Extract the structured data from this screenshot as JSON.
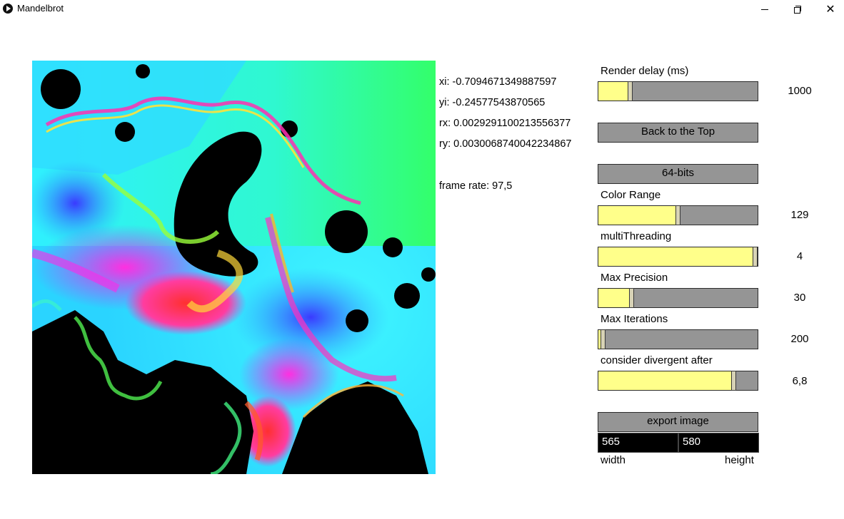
{
  "window": {
    "title": "Mandelbrot",
    "icon": "play-circle-icon",
    "controls": {
      "minimize": "minimize-icon",
      "restore": "restore-icon",
      "close": "close-icon"
    }
  },
  "info": {
    "xi": "xi: -0.7094671349887597",
    "yi": "yi: -0.24577543870565",
    "rx": "rx: 0.0029291100213556377",
    "ry": "ry: 0.0030068740042234867",
    "frame_rate": "frame rate: 97,5"
  },
  "controls": {
    "render_delay": {
      "label": "Render delay (ms)",
      "value": "1000",
      "fraction": 0.2
    },
    "back_to_top": {
      "label": "Back to the Top"
    },
    "bits": {
      "label": "64-bits"
    },
    "color_range": {
      "label": "Color Range",
      "value": "129",
      "fraction": 0.5
    },
    "multithreading": {
      "label": "multiThreading",
      "value": "4",
      "fraction": 0.995
    },
    "max_precision": {
      "label": "Max Precision",
      "value": "30",
      "fraction": 0.21
    },
    "max_iterations": {
      "label": "Max Iterations",
      "value": "200",
      "fraction": 0.03
    },
    "divergent": {
      "label": "consider divergent after",
      "value": "6,8",
      "fraction": 0.85
    },
    "export": {
      "label": "export image",
      "width_value": "565",
      "height_value": "580",
      "width_label": "width",
      "height_label": "height"
    }
  },
  "colors": {
    "slider_fill": "#ffff8a",
    "slider_track": "#959595",
    "knob": "#d8d3b6"
  }
}
